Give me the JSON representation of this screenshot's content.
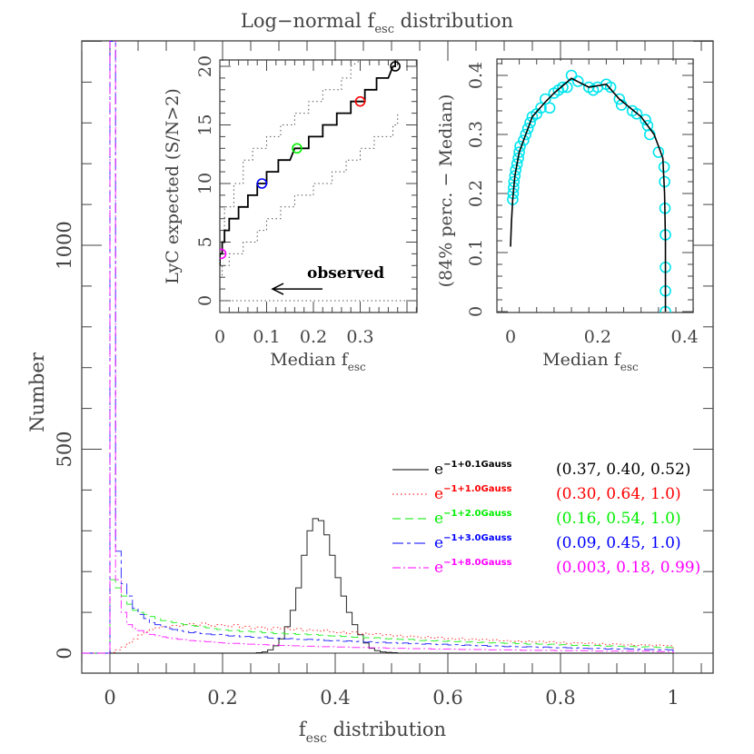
{
  "chart_data": [
    {
      "type": "histogram",
      "title": "Log−normal f",
      "title_sub": "esc",
      "title_rest": " distribution",
      "xlabel": "f",
      "xlabel_sub": "esc",
      "xlabel_rest": " distribution",
      "ylabel": "Number",
      "xlim": [
        -0.05,
        1.07
      ],
      "ylim": [
        -49,
        1501
      ],
      "x_ticks": [
        0,
        0.2,
        0.4,
        0.6,
        0.8,
        1
      ],
      "x_tick_labels": [
        "0",
        "0.2",
        "0.4",
        "0.6",
        "0.8",
        "1"
      ],
      "y_ticks": [
        0,
        500,
        1000
      ],
      "y_tick_labels": [
        "0",
        "500",
        "1000"
      ],
      "bin_start": 0,
      "bin_width": 0.01,
      "legend_position": "right-middle",
      "series": [
        {
          "exp": "−1+0.1Gauss",
          "stats": "(0.37, 0.40, 0.52)",
          "color": "#000000",
          "style": "solid",
          "values": [
            0,
            0,
            0,
            0,
            0,
            0,
            0,
            0,
            0,
            0,
            0,
            0,
            0,
            0,
            0,
            0,
            0,
            0,
            0,
            0,
            0,
            0,
            0,
            0,
            0,
            0,
            1,
            3,
            8,
            18,
            35,
            65,
            105,
            160,
            240,
            300,
            330,
            325,
            290,
            240,
            185,
            140,
            100,
            70,
            45,
            25,
            12,
            6,
            3,
            2,
            1,
            0,
            0,
            0,
            0,
            0,
            0,
            0,
            0,
            0,
            0,
            0,
            0,
            0,
            0,
            0,
            0,
            0,
            0,
            0,
            0,
            0,
            0,
            0,
            0,
            0,
            0,
            0,
            0,
            0,
            0,
            0,
            0,
            0,
            0,
            0,
            0,
            0,
            0,
            0,
            0,
            0,
            0,
            0,
            0,
            0,
            0,
            0,
            0,
            0
          ]
        },
        {
          "exp": "−1+1.0Gauss",
          "stats": "(0.30, 0.64, 1.0)",
          "color": "#ff0000",
          "style": "dotted",
          "values": [
            2,
            8,
            15,
            25,
            35,
            45,
            52,
            58,
            62,
            65,
            64,
            68,
            66,
            70,
            72,
            68,
            74,
            70,
            66,
            70,
            68,
            65,
            70,
            62,
            66,
            60,
            64,
            62,
            58,
            63,
            60,
            62,
            57,
            60,
            55,
            58,
            56,
            54,
            57,
            52,
            50,
            53,
            48,
            52,
            47,
            49,
            46,
            48,
            44,
            45,
            42,
            44,
            40,
            42,
            40,
            38,
            41,
            37,
            39,
            35,
            36,
            34,
            37,
            33,
            35,
            32,
            34,
            31,
            33,
            30,
            31,
            29,
            30,
            28,
            30,
            27,
            29,
            26,
            28,
            25,
            27,
            24,
            26,
            25,
            23,
            25,
            22,
            24,
            21,
            23,
            22,
            20,
            22,
            19,
            21,
            20,
            18,
            20,
            19,
            18
          ]
        },
        {
          "exp": "−1+2.0Gauss",
          "stats": "(0.16, 0.54, 1.0)",
          "color": "#00ee00",
          "style": "dashed",
          "values": [
            180,
            160,
            140,
            120,
            105,
            100,
            95,
            90,
            85,
            80,
            78,
            75,
            72,
            70,
            68,
            66,
            65,
            62,
            60,
            58,
            57,
            55,
            56,
            53,
            54,
            52,
            53,
            50,
            51,
            48,
            49,
            47,
            48,
            46,
            47,
            45,
            46,
            44,
            43,
            42,
            43,
            41,
            40,
            39,
            41,
            38,
            37,
            38,
            36,
            35,
            36,
            34,
            33,
            34,
            32,
            31,
            32,
            30,
            31,
            29,
            30,
            28,
            29,
            27,
            28,
            26,
            27,
            25,
            26,
            25,
            24,
            25,
            23,
            24,
            22,
            23,
            22,
            21,
            22,
            20,
            21,
            20,
            19,
            20,
            19,
            18,
            19,
            18,
            17,
            18,
            17,
            16,
            17,
            16,
            15,
            16,
            15,
            14,
            15,
            14
          ]
        },
        {
          "exp": "−1+3.0Gauss",
          "stats": "(0.09, 0.45, 1.0)",
          "color": "#0000ff",
          "style": "long-dash-dash",
          "values": [
            1500,
            250,
            170,
            140,
            110,
            95,
            85,
            75,
            70,
            65,
            60,
            58,
            55,
            53,
            50,
            52,
            48,
            47,
            45,
            46,
            44,
            42,
            43,
            40,
            41,
            39,
            38,
            40,
            37,
            36,
            37,
            35,
            36,
            34,
            33,
            34,
            32,
            33,
            31,
            30,
            31,
            29,
            30,
            28,
            29,
            27,
            28,
            26,
            27,
            25,
            26,
            24,
            25,
            23,
            24,
            22,
            23,
            22,
            21,
            22,
            20,
            21,
            19,
            20,
            19,
            18,
            19,
            17,
            18,
            17,
            16,
            17,
            16,
            15,
            16,
            15,
            14,
            15,
            14,
            13,
            14,
            13,
            12,
            13,
            12,
            11,
            12,
            11,
            10,
            11,
            10,
            11,
            10,
            9,
            10,
            9,
            9,
            8,
            9,
            8
          ]
        },
        {
          "exp": "−1+8.0Gauss",
          "stats": "(0.003, 0.18, 0.99)",
          "color": "#ff00ff",
          "style": "dash-dot",
          "values": [
            1550,
            180,
            100,
            70,
            60,
            55,
            50,
            46,
            43,
            40,
            38,
            36,
            34,
            33,
            31,
            30,
            29,
            28,
            27,
            26,
            25,
            24,
            24,
            23,
            22,
            22,
            21,
            21,
            20,
            20,
            19,
            19,
            18,
            18,
            17,
            17,
            17,
            16,
            16,
            16,
            15,
            15,
            15,
            14,
            14,
            14,
            13,
            13,
            13,
            12,
            12,
            12,
            12,
            11,
            11,
            11,
            11,
            10,
            10,
            10,
            10,
            10,
            9,
            9,
            9,
            9,
            9,
            8,
            8,
            8,
            8,
            8,
            8,
            7,
            7,
            7,
            7,
            7,
            7,
            6,
            6,
            6,
            6,
            6,
            6,
            6,
            5,
            5,
            5,
            5,
            5,
            5,
            5,
            5,
            5,
            5,
            4,
            4,
            4,
            4
          ]
        }
      ],
      "legend_base": "e"
    },
    {
      "type": "line",
      "xlabel": "Median f",
      "xlabel_sub": "esc",
      "ylabel": "LyC expected (S/N>2)",
      "xlim": [
        0,
        0.42
      ],
      "ylim": [
        -1,
        20.5
      ],
      "x_ticks": [
        0,
        0.1,
        0.2,
        0.3
      ],
      "x_tick_labels": [
        "0",
        "0.1",
        "0.2",
        "0.3"
      ],
      "y_ticks": [
        0,
        5,
        10,
        15,
        20
      ],
      "y_tick_labels": [
        "0",
        "5",
        "10",
        "15",
        "20"
      ],
      "annotation": "observed",
      "observed_value": 0,
      "median_steps": [
        [
          0,
          3
        ],
        [
          0,
          4
        ],
        [
          0.005,
          4
        ],
        [
          0.005,
          5
        ],
        [
          0.01,
          5
        ],
        [
          0.01,
          6
        ],
        [
          0.02,
          6
        ],
        [
          0.02,
          7
        ],
        [
          0.04,
          7
        ],
        [
          0.04,
          8
        ],
        [
          0.06,
          8
        ],
        [
          0.06,
          9
        ],
        [
          0.08,
          9
        ],
        [
          0.08,
          10
        ],
        [
          0.1,
          10
        ],
        [
          0.1,
          11
        ],
        [
          0.125,
          11
        ],
        [
          0.125,
          12
        ],
        [
          0.15,
          12
        ],
        [
          0.16,
          13
        ],
        [
          0.19,
          13
        ],
        [
          0.19,
          14
        ],
        [
          0.22,
          14
        ],
        [
          0.22,
          15
        ],
        [
          0.25,
          15
        ],
        [
          0.25,
          16
        ],
        [
          0.28,
          16
        ],
        [
          0.28,
          17
        ],
        [
          0.31,
          17
        ],
        [
          0.31,
          18
        ],
        [
          0.335,
          18
        ],
        [
          0.335,
          19
        ],
        [
          0.36,
          19
        ],
        [
          0.37,
          20
        ],
        [
          0.375,
          20
        ],
        [
          0.375,
          20.5
        ]
      ],
      "upper_steps": [
        [
          0,
          5
        ],
        [
          0.01,
          5
        ],
        [
          0.01,
          8
        ],
        [
          0.03,
          8
        ],
        [
          0.03,
          10
        ],
        [
          0.05,
          10
        ],
        [
          0.05,
          12
        ],
        [
          0.07,
          12
        ],
        [
          0.07,
          13
        ],
        [
          0.1,
          13
        ],
        [
          0.1,
          14
        ],
        [
          0.13,
          14
        ],
        [
          0.13,
          15
        ],
        [
          0.16,
          15
        ],
        [
          0.16,
          16
        ],
        [
          0.19,
          16
        ],
        [
          0.19,
          17
        ],
        [
          0.22,
          17
        ],
        [
          0.22,
          18
        ],
        [
          0.26,
          18
        ],
        [
          0.26,
          19
        ],
        [
          0.28,
          19
        ],
        [
          0.28,
          20
        ],
        [
          0.3,
          20.5
        ]
      ],
      "lower_steps": [
        [
          0,
          2
        ],
        [
          0.005,
          2
        ],
        [
          0.005,
          3
        ],
        [
          0.02,
          3
        ],
        [
          0.02,
          4
        ],
        [
          0.05,
          4
        ],
        [
          0.05,
          5
        ],
        [
          0.08,
          5
        ],
        [
          0.08,
          6
        ],
        [
          0.1,
          6
        ],
        [
          0.1,
          7
        ],
        [
          0.13,
          7
        ],
        [
          0.13,
          8
        ],
        [
          0.16,
          8
        ],
        [
          0.16,
          9
        ],
        [
          0.2,
          9
        ],
        [
          0.2,
          10
        ],
        [
          0.24,
          10
        ],
        [
          0.24,
          11
        ],
        [
          0.27,
          11
        ],
        [
          0.27,
          12
        ],
        [
          0.3,
          12
        ],
        [
          0.3,
          13
        ],
        [
          0.33,
          13
        ],
        [
          0.33,
          14
        ],
        [
          0.37,
          14
        ],
        [
          0.37,
          15
        ],
        [
          0.38,
          15
        ],
        [
          0.38,
          16
        ]
      ],
      "markers": [
        {
          "x": 0.003,
          "y": 4,
          "color": "#ff00ff"
        },
        {
          "x": 0.09,
          "y": 10,
          "color": "#0000ff"
        },
        {
          "x": 0.165,
          "y": 13,
          "color": "#00ee00"
        },
        {
          "x": 0.3,
          "y": 17,
          "color": "#ff0000"
        },
        {
          "x": 0.375,
          "y": 20,
          "color": "#000000"
        }
      ]
    },
    {
      "type": "scatter",
      "xlabel": "Median f",
      "xlabel_sub": "esc",
      "ylabel": "(84% perc. − Median)",
      "xlim": [
        -0.03,
        0.42
      ],
      "ylim": [
        0,
        0.428
      ],
      "x_ticks": [
        0,
        0.2,
        0.4
      ],
      "x_tick_labels": [
        "0",
        "0.2",
        "0.4"
      ],
      "y_ticks": [
        0,
        0.1,
        0.2,
        0.3,
        0.4
      ],
      "y_tick_labels": [
        "0",
        "0.1",
        "0.2",
        "0.3",
        "0.4"
      ],
      "marker_color": "#00e5ee",
      "points": [
        [
          0.005,
          0.19
        ],
        [
          0.006,
          0.2
        ],
        [
          0.007,
          0.21
        ],
        [
          0.008,
          0.22
        ],
        [
          0.01,
          0.23
        ],
        [
          0.012,
          0.24
        ],
        [
          0.015,
          0.25
        ],
        [
          0.018,
          0.26
        ],
        [
          0.02,
          0.27
        ],
        [
          0.022,
          0.28
        ],
        [
          0.03,
          0.29
        ],
        [
          0.035,
          0.3
        ],
        [
          0.04,
          0.31
        ],
        [
          0.045,
          0.32
        ],
        [
          0.05,
          0.33
        ],
        [
          0.06,
          0.335
        ],
        [
          0.07,
          0.345
        ],
        [
          0.08,
          0.36
        ],
        [
          0.09,
          0.345
        ],
        [
          0.1,
          0.37
        ],
        [
          0.11,
          0.375
        ],
        [
          0.12,
          0.38
        ],
        [
          0.13,
          0.38
        ],
        [
          0.14,
          0.4
        ],
        [
          0.155,
          0.39
        ],
        [
          0.18,
          0.38
        ],
        [
          0.19,
          0.375
        ],
        [
          0.2,
          0.38
        ],
        [
          0.22,
          0.385
        ],
        [
          0.23,
          0.38
        ],
        [
          0.25,
          0.36
        ],
        [
          0.255,
          0.35
        ],
        [
          0.28,
          0.34
        ],
        [
          0.29,
          0.335
        ],
        [
          0.31,
          0.325
        ],
        [
          0.315,
          0.315
        ],
        [
          0.32,
          0.3
        ],
        [
          0.34,
          0.27
        ],
        [
          0.353,
          0.245
        ],
        [
          0.354,
          0.22
        ],
        [
          0.355,
          0.175
        ],
        [
          0.356,
          0.13
        ],
        [
          0.356,
          0.075
        ],
        [
          0.356,
          0.035
        ],
        [
          0.356,
          0.0
        ]
      ],
      "curve": [
        [
          0.0,
          0.11
        ],
        [
          0.002,
          0.15
        ],
        [
          0.005,
          0.19
        ],
        [
          0.01,
          0.23
        ],
        [
          0.02,
          0.27
        ],
        [
          0.035,
          0.3
        ],
        [
          0.05,
          0.33
        ],
        [
          0.08,
          0.355
        ],
        [
          0.1,
          0.37
        ],
        [
          0.14,
          0.395
        ],
        [
          0.18,
          0.38
        ],
        [
          0.22,
          0.385
        ],
        [
          0.25,
          0.36
        ],
        [
          0.3,
          0.33
        ],
        [
          0.33,
          0.3
        ],
        [
          0.35,
          0.26
        ],
        [
          0.354,
          0.2
        ],
        [
          0.356,
          0.12
        ],
        [
          0.356,
          0.0
        ]
      ]
    }
  ]
}
